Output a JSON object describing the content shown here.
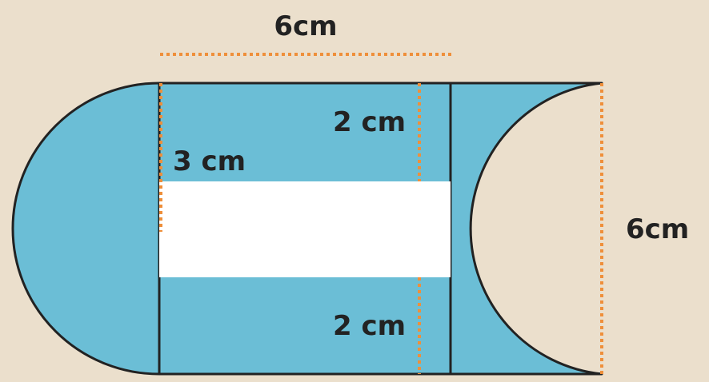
{
  "colors": {
    "background": "#ebdfcc",
    "shaded_region": "#6bbed6",
    "hole": "#ffffff",
    "outline": "#222222",
    "dimension_line": "#ef8f3a"
  },
  "labels": {
    "top_width": "6cm",
    "left_height": "3 cm",
    "upper_gap": "2 cm",
    "lower_gap": "2 cm",
    "right_height": "6cm"
  }
}
